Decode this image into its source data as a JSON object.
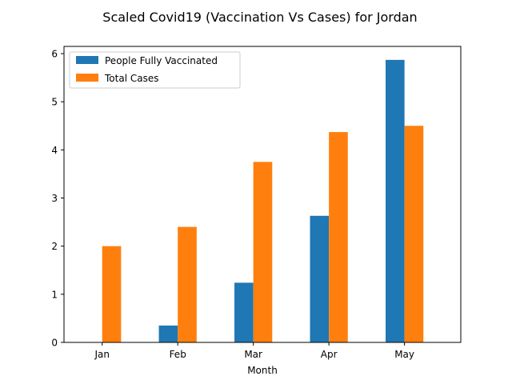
{
  "chart_data": {
    "type": "bar",
    "title": "Scaled Covid19 (Vaccination Vs Cases) for Jordan",
    "xlabel": "Month",
    "ylabel": "",
    "categories": [
      "Jan",
      "Feb",
      "Mar",
      "Apr",
      "May"
    ],
    "ylim": [
      0,
      6.15
    ],
    "yticks": [
      "0",
      "1",
      "2",
      "3",
      "4",
      "5",
      "6"
    ],
    "grid": false,
    "legend_position": "top-left",
    "series": [
      {
        "name": "People Fully Vaccinated",
        "color": "#1f77b4",
        "values": [
          0,
          0.35,
          1.24,
          2.63,
          5.87
        ]
      },
      {
        "name": "Total Cases",
        "color": "#ff7f0e",
        "values": [
          2.0,
          2.4,
          3.75,
          4.37,
          4.5
        ]
      }
    ]
  }
}
